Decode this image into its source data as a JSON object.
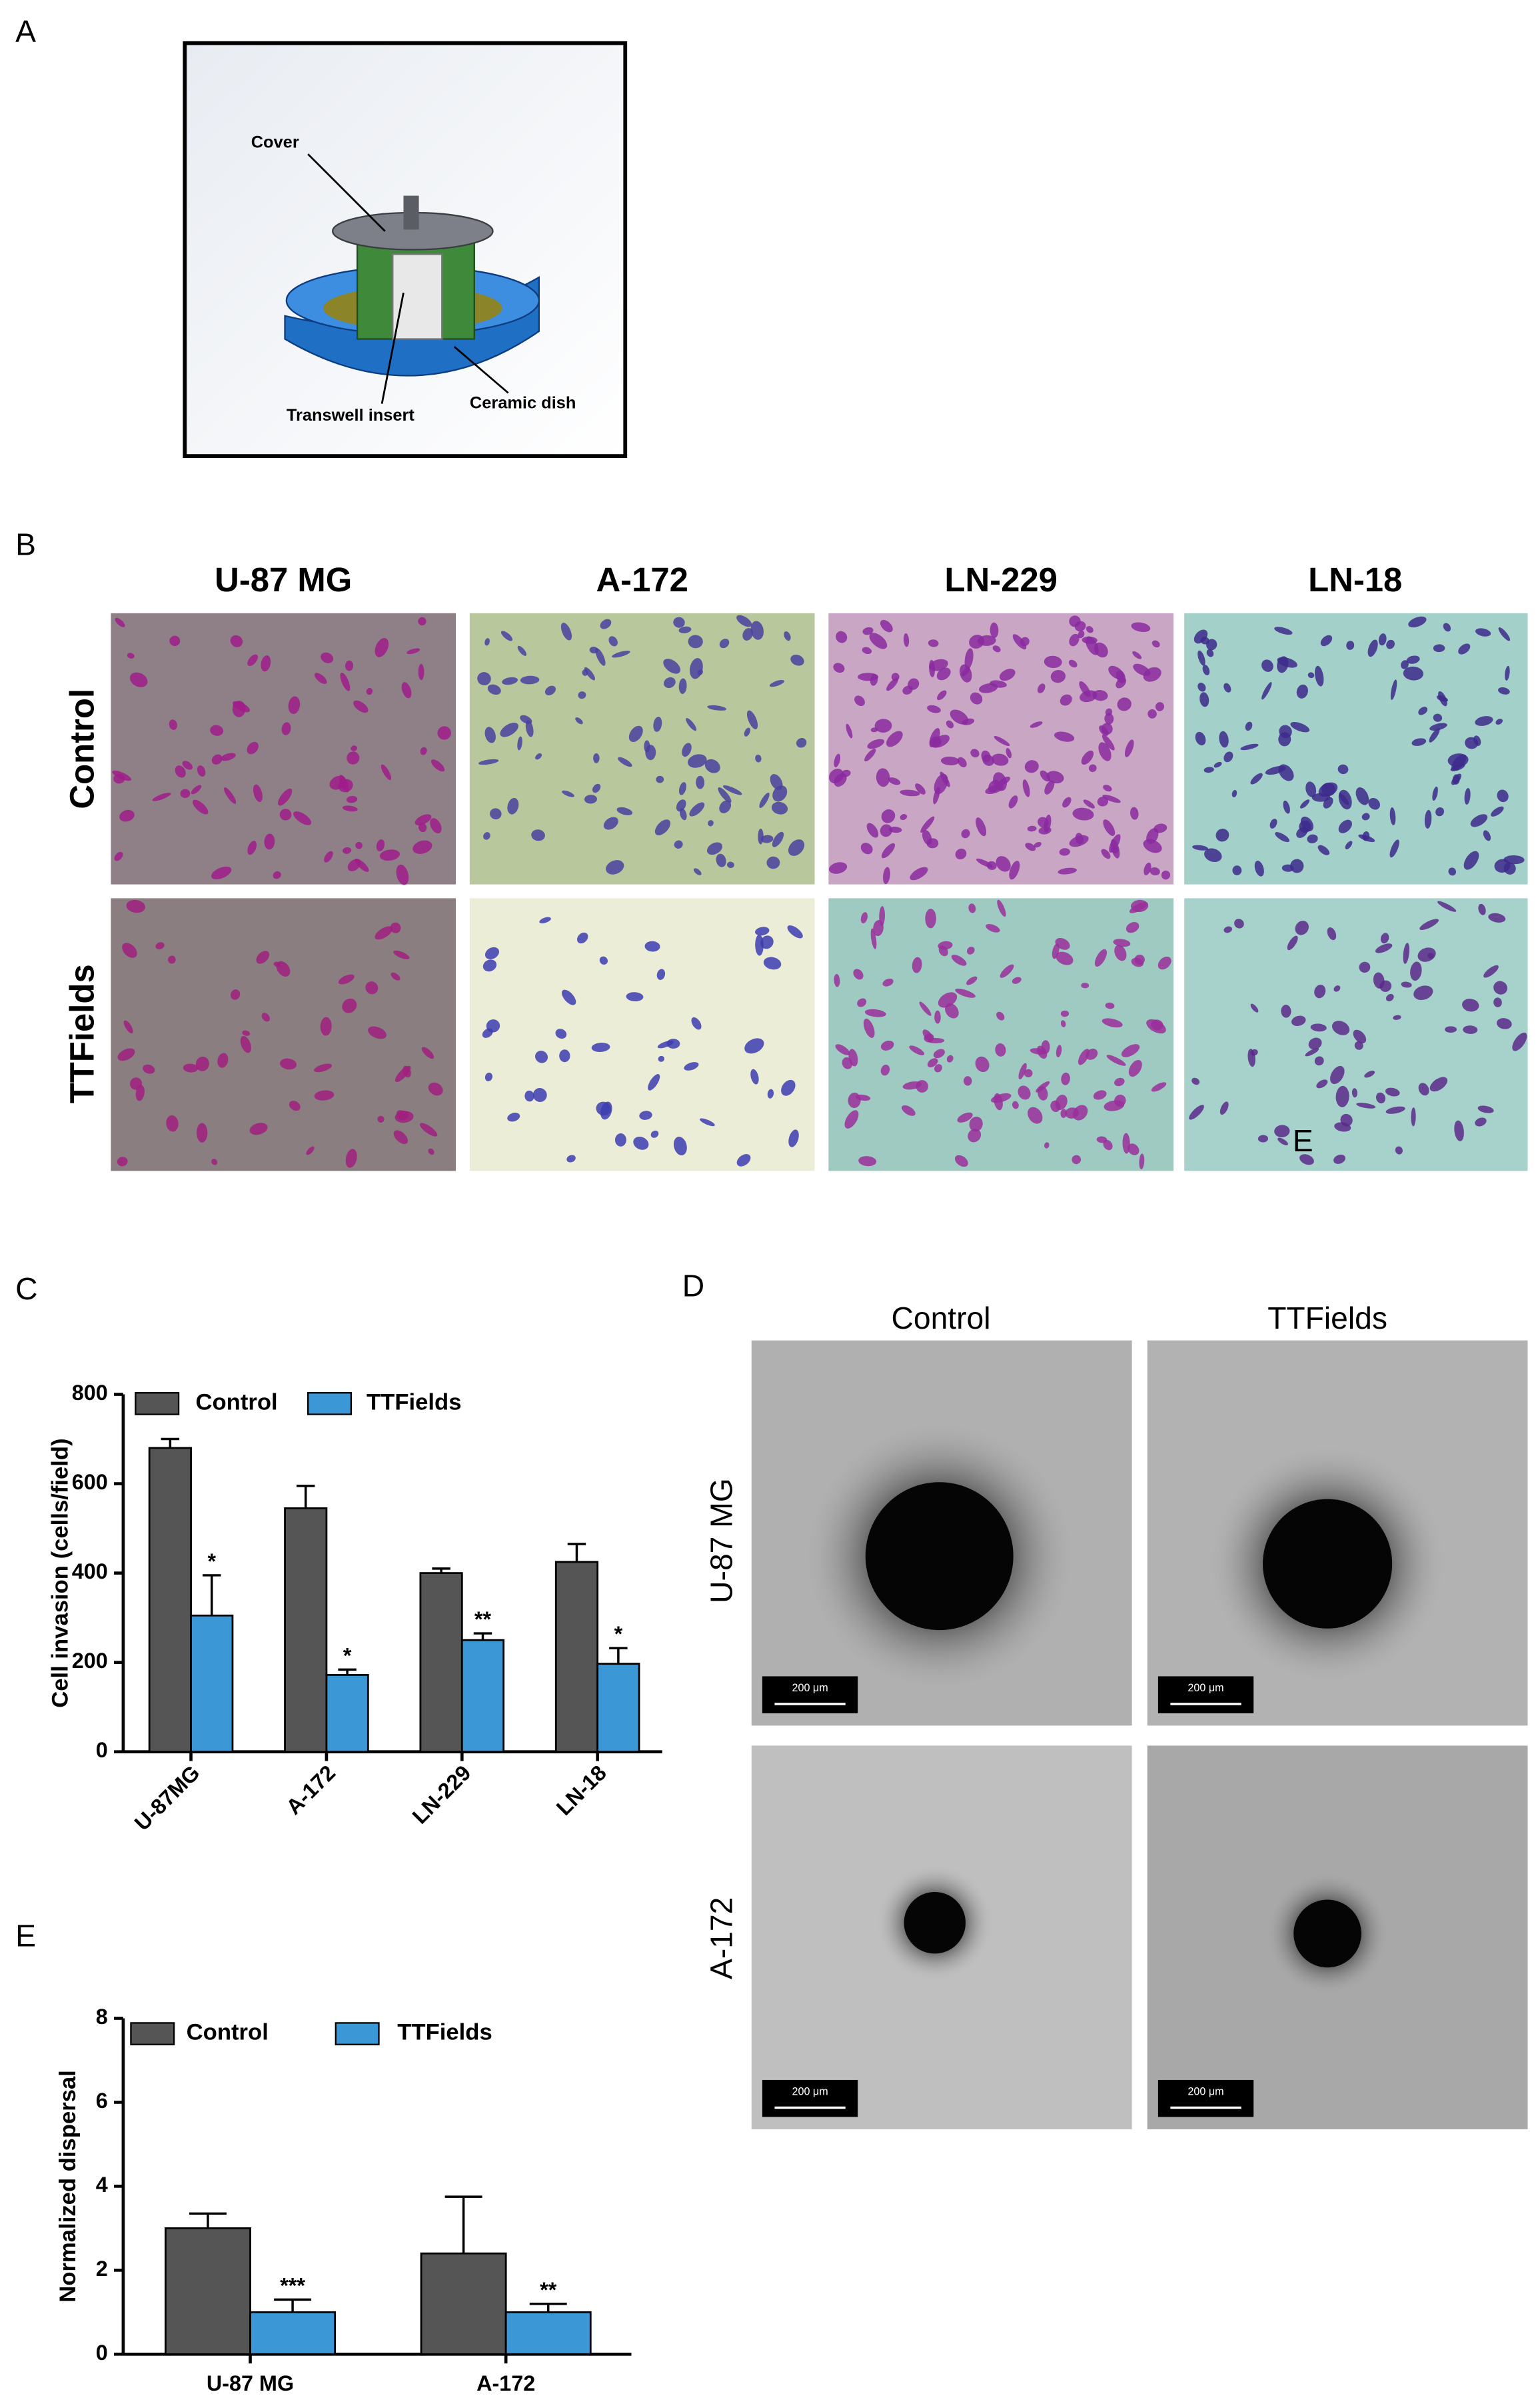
{
  "panel_labels": [
    "A",
    "B",
    "C",
    "D",
    "E"
  ],
  "diagram": {
    "labels": [
      "Cover",
      "Transwell insert",
      "Ceramic dish"
    ]
  },
  "micrographs": {
    "columns": [
      "U-87 MG",
      "A-172",
      "LN-229",
      "LN-18"
    ],
    "rows": [
      "Control",
      "TTFields"
    ],
    "stray_label": "E"
  },
  "spheroids": {
    "columns": [
      "Control",
      "TTFields"
    ],
    "rows": [
      "U-87 MG",
      "A-172"
    ],
    "scale_bar": "200 μm"
  },
  "chart_data": [
    {
      "type": "bar",
      "ylabel": "Cell invasion (cells/field)",
      "categories": [
        "U-87MG",
        "A-172",
        "LN-229",
        "LN-18"
      ],
      "series": [
        {
          "name": "Control",
          "color": "#555555",
          "values": [
            680,
            545,
            400,
            425
          ],
          "errors": [
            20,
            50,
            10,
            40
          ]
        },
        {
          "name": "TTFields",
          "color": "#3b97d5",
          "values": [
            305,
            172,
            250,
            197
          ],
          "errors": [
            90,
            12,
            15,
            35
          ],
          "annotations": [
            "*",
            "*",
            "**",
            "*"
          ]
        }
      ],
      "ylim": [
        0,
        800
      ],
      "yticks": [
        0,
        200,
        400,
        600,
        800
      ],
      "grid": false,
      "legend": "top"
    },
    {
      "type": "bar",
      "ylabel": "Normalized dispersal",
      "categories": [
        "U-87 MG",
        "A-172"
      ],
      "series": [
        {
          "name": "Control",
          "color": "#555555",
          "values": [
            3.0,
            2.4
          ],
          "errors": [
            0.35,
            1.35
          ]
        },
        {
          "name": "TTFields",
          "color": "#3b97d5",
          "values": [
            1.0,
            1.0
          ],
          "errors": [
            0.3,
            0.2
          ],
          "annotations": [
            "***",
            "**"
          ]
        }
      ],
      "ylim": [
        0,
        8
      ],
      "yticks": [
        0,
        2,
        4,
        6,
        8
      ],
      "grid": false,
      "legend": "top"
    }
  ]
}
